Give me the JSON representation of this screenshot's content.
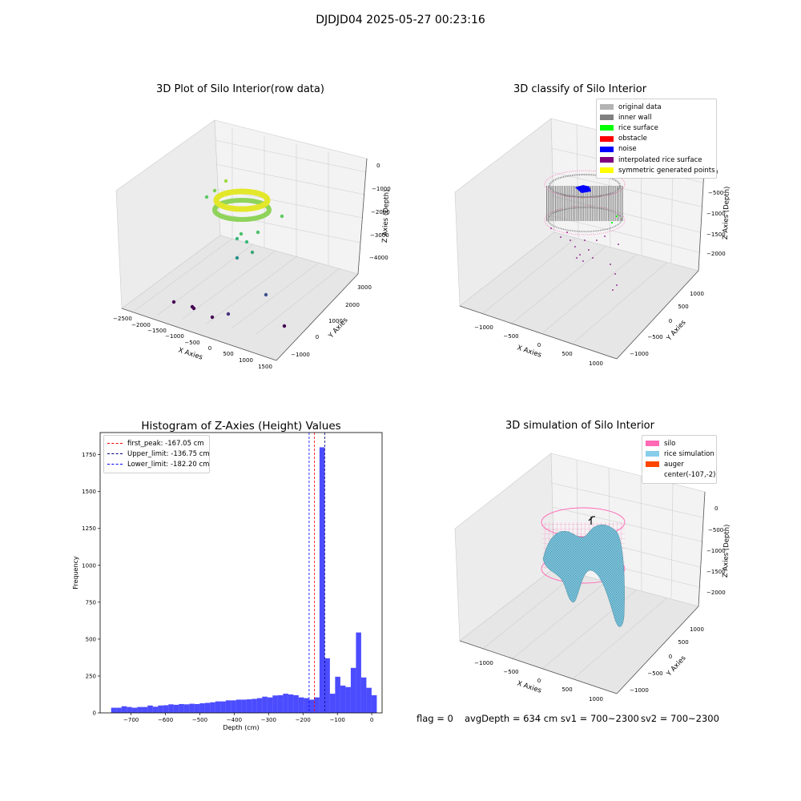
{
  "suptitle": "DJDJD04 2025-05-27 00:23:16",
  "plot1": {
    "title": "3D Plot of Silo Interior(row data)",
    "xlabel": "X Axies",
    "ylabel": "Y Axies",
    "zlabel": "Z Axies (Depth)",
    "xticks": [
      "−2500",
      "−2000",
      "−1500",
      "−1000",
      "−500",
      "0",
      "500",
      "1000",
      "1500"
    ],
    "yticks": [
      "−1000",
      "0",
      "1000",
      "2000",
      "3000"
    ],
    "zticks": [
      "0",
      "−1000",
      "−2000",
      "−3000",
      "−4000"
    ]
  },
  "plot2": {
    "title": "3D classify of Silo Interior",
    "xlabel": "X Axies",
    "ylabel": "Y Axies",
    "zlabel": "Z Axies (Depth)",
    "xticks": [
      "−1000",
      "−500",
      "0",
      "500",
      "1000"
    ],
    "yticks": [
      "−1000",
      "−500",
      "0",
      "500",
      "1000"
    ],
    "zticks": [
      "0",
      "−500",
      "−1000",
      "−1500",
      "−2000"
    ],
    "legend": [
      {
        "label": "original data",
        "color": "#b3b3b3"
      },
      {
        "label": "inner wall",
        "color": "#808080"
      },
      {
        "label": "rice surface",
        "color": "#00ff00"
      },
      {
        "label": "obstacle",
        "color": "#ff0000"
      },
      {
        "label": "noise",
        "color": "#0000ff"
      },
      {
        "label": "interpolated rice surface",
        "color": "#800080"
      },
      {
        "label": "symmetric generated points",
        "color": "#ffff00"
      }
    ]
  },
  "plot3": {
    "title": "Histogram of Z-Axies (Height) Values",
    "xlabel": "Depth (cm)",
    "ylabel": "Frequency",
    "legend": [
      {
        "label": "first_peak: -167.05 cm",
        "color": "#ff0000"
      },
      {
        "label": "Upper_limit: -136.75 cm",
        "color": "#000080"
      },
      {
        "label": "Lower_limit: -182.20 cm",
        "color": "#0000ff"
      }
    ]
  },
  "plot4": {
    "title": "3D simulation of Silo Interior",
    "xlabel": "X Axies",
    "ylabel": "Y Axies",
    "zlabel": "Z Axies (Depth)",
    "xticks": [
      "−1000",
      "−500",
      "0",
      "500",
      "1000"
    ],
    "yticks": [
      "−1000",
      "−500",
      "0",
      "500",
      "1000"
    ],
    "zticks": [
      "0",
      "−500",
      "−1000",
      "−1500",
      "−2000"
    ],
    "legend": [
      {
        "label": "silo",
        "color": "#ff69b4"
      },
      {
        "label": "rice simulation",
        "color": "#87ceeb"
      },
      {
        "label": "auger",
        "color": "#ff4500"
      },
      {
        "label": "center(-107,-2)",
        "color": "#ffffff"
      }
    ]
  },
  "footer": {
    "flag": "flag = 0",
    "avg": "avgDepth = 634 cm  sv1 = 700~2300",
    "sv2": "sv2 = 700~2300"
  },
  "chart_data": {
    "type": "bar",
    "title": "Histogram of Z-Axies (Height) Values",
    "xlabel": "Depth (cm)",
    "ylabel": "Frequency",
    "xlim": [
      -790,
      30
    ],
    "ylim": [
      0,
      1900
    ],
    "xticks": [
      -700,
      -600,
      -500,
      -400,
      -300,
      -200,
      -100,
      0
    ],
    "yticks": [
      0,
      250,
      500,
      750,
      1000,
      1250,
      1500,
      1750
    ],
    "bar_color": "#0000ff",
    "bin_width": 15.15,
    "bin_edges_start": -758,
    "values": [
      35,
      35,
      45,
      40,
      35,
      40,
      40,
      50,
      42,
      50,
      52,
      58,
      55,
      60,
      58,
      62,
      60,
      65,
      68,
      72,
      78,
      78,
      85,
      85,
      90,
      90,
      92,
      95,
      100,
      110,
      105,
      118,
      120,
      130,
      125,
      120,
      105,
      100,
      90,
      105,
      1800,
      370,
      130,
      245,
      185,
      175,
      305,
      545,
      240,
      170,
      120
    ],
    "vlines": [
      {
        "name": "first_peak",
        "value": -167.05,
        "color": "#ff0000"
      },
      {
        "name": "Upper_limit",
        "value": -136.75,
        "color": "#000080"
      },
      {
        "name": "Lower_limit",
        "value": -182.2,
        "color": "#0000ff"
      }
    ],
    "legend": "upper-left"
  }
}
